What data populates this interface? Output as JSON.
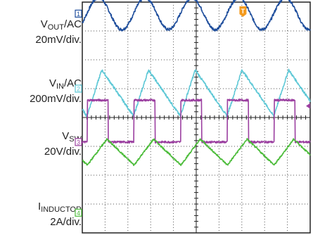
{
  "labels": [
    {
      "main": "V",
      "sub": "OUT",
      "suffix": "/AC",
      "scale": "20mV/div."
    },
    {
      "main": "V",
      "sub": "IN",
      "suffix": "/AC",
      "scale": "200mV/div."
    },
    {
      "main": "V",
      "sub": "SW",
      "suffix": "",
      "scale": "20V/div."
    },
    {
      "main": "I",
      "sub": "INDUCTOR",
      "suffix": "",
      "scale": "2A/div."
    }
  ],
  "markers": [
    "1",
    "2",
    "3",
    "4"
  ],
  "trigger_marker": "T",
  "colors": {
    "ch1": "#1f4e9c",
    "ch2": "#5ec8d6",
    "ch3": "#9b3fa0",
    "ch4": "#4cbc3a",
    "trigger": "#f39a1e",
    "grid": "#555555",
    "frame": "#222222"
  },
  "chart_data": {
    "type": "line",
    "x_divisions": 10,
    "y_divisions": 8,
    "series": [
      {
        "name": "VOUT/AC",
        "shape": "sine",
        "period_div": 2.05,
        "phase_div": 0.2,
        "center_div": 7.6,
        "amplitude_div": 0.55
      },
      {
        "name": "VIN/AC",
        "shape": "sawtooth",
        "period_div": 2.05,
        "rise_fraction": 0.32,
        "start_div": 0.2,
        "low_div": 4.05,
        "high_div": 5.65
      },
      {
        "name": "VSW",
        "shape": "pulse",
        "period_div": 2.05,
        "duty": 0.45,
        "start_div": 0.22,
        "low_div": 3.15,
        "high_div": 4.6
      },
      {
        "name": "IINDUCTOR",
        "shape": "triangle",
        "period_div": 2.05,
        "rise_fraction": 0.42,
        "start_div": 0.22,
        "low_div": 2.35,
        "high_div": 3.25
      }
    ]
  }
}
